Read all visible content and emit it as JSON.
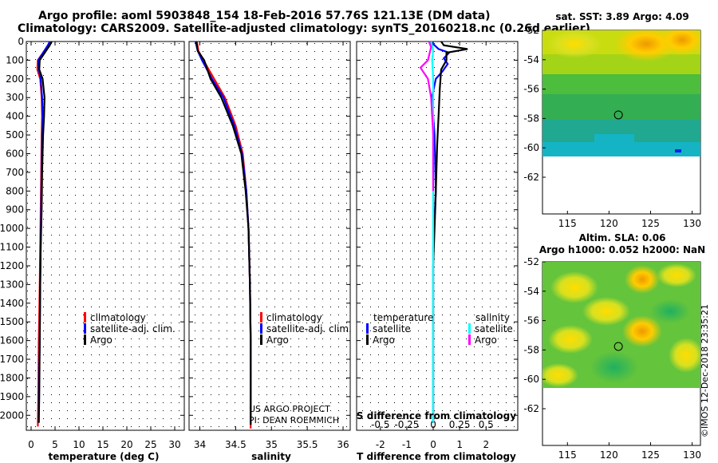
{
  "title_line1": "Argo profile: aoml 5903848_154 18-Feb-2016 57.76S 121.13E (DM data)",
  "title_line2": "Climatology: CARS2009. Satellite-adjusted climatology: synTS_20160218.nc (0.26d earlier)",
  "footer_stamp": "©IMOS 12-Dec-2018 23:35:21",
  "credit_line1": "US ARGO PROJECT",
  "credit_line2": "PI: DEAN ROEMMICH",
  "colors": {
    "climatology": "#ff0000",
    "satellite": "#0000ff",
    "argo": "#000000",
    "satellite_s": "#00ffff",
    "argo_s": "#ff00ff"
  },
  "chart_data": [
    {
      "type": "line",
      "id": "temperature",
      "xlabel": "temperature (deg C)",
      "ylabel": "",
      "xlim": [
        -1,
        32
      ],
      "ylim": [
        2080,
        0
      ],
      "xticks": [
        "0",
        "5",
        "10",
        "15",
        "20",
        "25",
        "30"
      ],
      "xtick_values": [
        0,
        5,
        10,
        15,
        20,
        25,
        30
      ],
      "yticks": [
        "0",
        "100",
        "200",
        "300",
        "400",
        "500",
        "600",
        "700",
        "800",
        "900",
        "1000",
        "1100",
        "1200",
        "1300",
        "1400",
        "1500",
        "1600",
        "1700",
        "1800",
        "1900",
        "2000"
      ],
      "ytick_values": [
        0,
        100,
        200,
        300,
        400,
        500,
        600,
        700,
        800,
        900,
        1000,
        1100,
        1200,
        1300,
        1400,
        1500,
        1600,
        1700,
        1800,
        1900,
        2000
      ],
      "legend": [
        "climatology",
        "satellite-adj. clim.",
        "Argo"
      ],
      "series": [
        {
          "name": "climatology",
          "color": "#ff0000",
          "x": [
            4.0,
            3.6,
            1.4,
            1.3,
            1.9,
            2.2,
            2.3,
            2.2,
            2.1,
            2.0,
            1.9,
            1.8,
            1.6,
            1.5,
            1.4
          ],
          "y": [
            0,
            20,
            100,
            150,
            200,
            300,
            400,
            500,
            700,
            900,
            1100,
            1300,
            1600,
            1900,
            2060
          ]
        },
        {
          "name": "satellite-adj. clim.",
          "color": "#0000ff",
          "x": [
            3.9,
            3.5,
            1.5,
            1.6,
            2.0,
            2.3,
            2.4,
            2.3,
            2.2,
            2.1,
            2.0,
            1.9,
            1.8,
            1.6,
            1.6
          ],
          "y": [
            0,
            20,
            100,
            150,
            200,
            300,
            400,
            500,
            700,
            900,
            1100,
            1300,
            1600,
            1900,
            2040
          ]
        },
        {
          "name": "Argo",
          "color": "#000000",
          "x": [
            4.3,
            3.9,
            1.8,
            1.7,
            2.4,
            2.8,
            2.7,
            2.5,
            2.3,
            2.2,
            2.0,
            1.9,
            1.8,
            1.7,
            1.6
          ],
          "y": [
            0,
            20,
            100,
            150,
            200,
            300,
            400,
            500,
            700,
            900,
            1100,
            1300,
            1600,
            1900,
            2040
          ]
        }
      ]
    },
    {
      "type": "line",
      "id": "salinity",
      "xlabel": "salinity",
      "xlim": [
        33.85,
        36.1
      ],
      "ylim": [
        2080,
        0
      ],
      "xticks": [
        "34",
        "34.5",
        "35",
        "35.5",
        "36"
      ],
      "xtick_values": [
        34,
        34.5,
        35,
        35.5,
        36
      ],
      "legend": [
        "climatology",
        "satellite-adj. clim.",
        "Argo"
      ],
      "series": [
        {
          "name": "climatology",
          "color": "#ff0000",
          "x": [
            33.96,
            33.98,
            34.05,
            34.2,
            34.35,
            34.5,
            34.6,
            34.65,
            34.68,
            34.7,
            34.71,
            34.71,
            34.71
          ],
          "y": [
            0,
            50,
            100,
            200,
            300,
            450,
            600,
            800,
            1000,
            1300,
            1600,
            1900,
            2070
          ]
        },
        {
          "name": "satellite-adj. clim.",
          "color": "#0000ff",
          "x": [
            33.94,
            33.97,
            34.03,
            34.17,
            34.33,
            34.48,
            34.59,
            34.65,
            34.68,
            34.7,
            34.71,
            34.71,
            34.71
          ],
          "y": [
            0,
            50,
            100,
            200,
            300,
            450,
            600,
            800,
            1000,
            1300,
            1600,
            1900,
            2050
          ]
        },
        {
          "name": "Argo",
          "color": "#000000",
          "x": [
            33.95,
            33.97,
            34.06,
            34.15,
            34.3,
            34.46,
            34.58,
            34.64,
            34.68,
            34.7,
            34.71,
            34.71,
            34.71
          ],
          "y": [
            0,
            50,
            100,
            200,
            300,
            450,
            600,
            800,
            1000,
            1300,
            1600,
            1900,
            2050
          ]
        }
      ]
    },
    {
      "type": "line",
      "id": "difference",
      "xlabel": "T difference from climatology",
      "top_label": "S difference from climatology",
      "xlim": [
        -2.9,
        3.2
      ],
      "ylim": [
        2080,
        0
      ],
      "xticks": [
        "-2",
        "-1",
        "0",
        "1",
        "2"
      ],
      "xtick_values": [
        -2,
        -1,
        0,
        1,
        2
      ],
      "s_ticks": [
        "-0.5",
        "-0.25",
        "0",
        "0.25",
        "0.5"
      ],
      "s_tick_values": [
        -0.5,
        -0.25,
        0,
        0.25,
        0.5
      ],
      "legend_temperature_title": "temperature",
      "legend_salinity_title": "salinity",
      "legend_temperature": [
        "satellite",
        "Argo"
      ],
      "legend_salinity": [
        "satellite",
        "Argo"
      ],
      "series": [
        {
          "name": "T satellite",
          "color": "#0000ff",
          "x": [
            -0.1,
            0.2,
            0.6,
            0.4,
            0.55,
            0.35,
            0.1,
            -0.05,
            0.05,
            0.1,
            0.0,
            0.0,
            0.0,
            0.0
          ],
          "y": [
            0,
            40,
            60,
            90,
            120,
            160,
            200,
            300,
            500,
            800,
            1100,
            1400,
            1700,
            2040
          ]
        },
        {
          "name": "T Argo",
          "color": "#000000",
          "x": [
            0.3,
            0.4,
            1.3,
            0.5,
            0.5,
            0.3,
            0.25,
            0.2,
            0.15,
            0.1,
            0.05,
            0.0,
            0.0,
            0.0,
            0.0
          ],
          "y": [
            0,
            20,
            40,
            60,
            100,
            150,
            250,
            400,
            550,
            800,
            1000,
            1200,
            1500,
            1800,
            2040
          ]
        },
        {
          "name": "S satellite",
          "color": "#00ffff",
          "x": [
            -0.02,
            0.0,
            -0.01,
            0.0,
            0.0,
            0.0,
            0.0,
            0.0,
            0.0,
            0.0
          ],
          "y": [
            0,
            50,
            100,
            200,
            400,
            600,
            900,
            1200,
            1600,
            2040
          ]
        },
        {
          "name": "S Argo",
          "color": "#ff00ff",
          "x": [
            -0.04,
            -0.02,
            -0.05,
            -0.12,
            -0.05,
            -0.02,
            0.0,
            0.0
          ],
          "y": [
            0,
            30,
            100,
            140,
            200,
            300,
            500,
            800
          ]
        }
      ]
    }
  ],
  "maps": [
    {
      "id": "sst",
      "title_line1": "sat. SST: 3.89 Argo: 4.09",
      "title_line2": "",
      "xlim": [
        112,
        131
      ],
      "ylim": [
        -64.5,
        -52
      ],
      "xticks": [
        "115",
        "120",
        "125",
        "130"
      ],
      "xtick_values": [
        115,
        120,
        125,
        130
      ],
      "yticks": [
        "-52",
        "-54",
        "-56",
        "-58",
        "-60",
        "-62"
      ],
      "ytick_values": [
        -52,
        -54,
        -56,
        -58,
        -60,
        -62
      ],
      "data_bottom_lat": -60,
      "marker": {
        "lon": 121.13,
        "lat": -57.76
      }
    },
    {
      "id": "sla",
      "title_line1": "Altim. SLA: 0.06",
      "title_line2": "Argo h1000: 0.052 h2000: NaN",
      "xlim": [
        112,
        131
      ],
      "ylim": [
        -64.5,
        -52
      ],
      "xticks": [
        "115",
        "120",
        "125",
        "130"
      ],
      "xtick_values": [
        115,
        120,
        125,
        130
      ],
      "yticks": [
        "-52",
        "-54",
        "-56",
        "-58",
        "-60",
        "-62"
      ],
      "ytick_values": [
        -52,
        -54,
        -56,
        -58,
        -60,
        -62
      ],
      "data_bottom_lat": -60,
      "marker": {
        "lon": 121.13,
        "lat": -57.76
      }
    }
  ]
}
